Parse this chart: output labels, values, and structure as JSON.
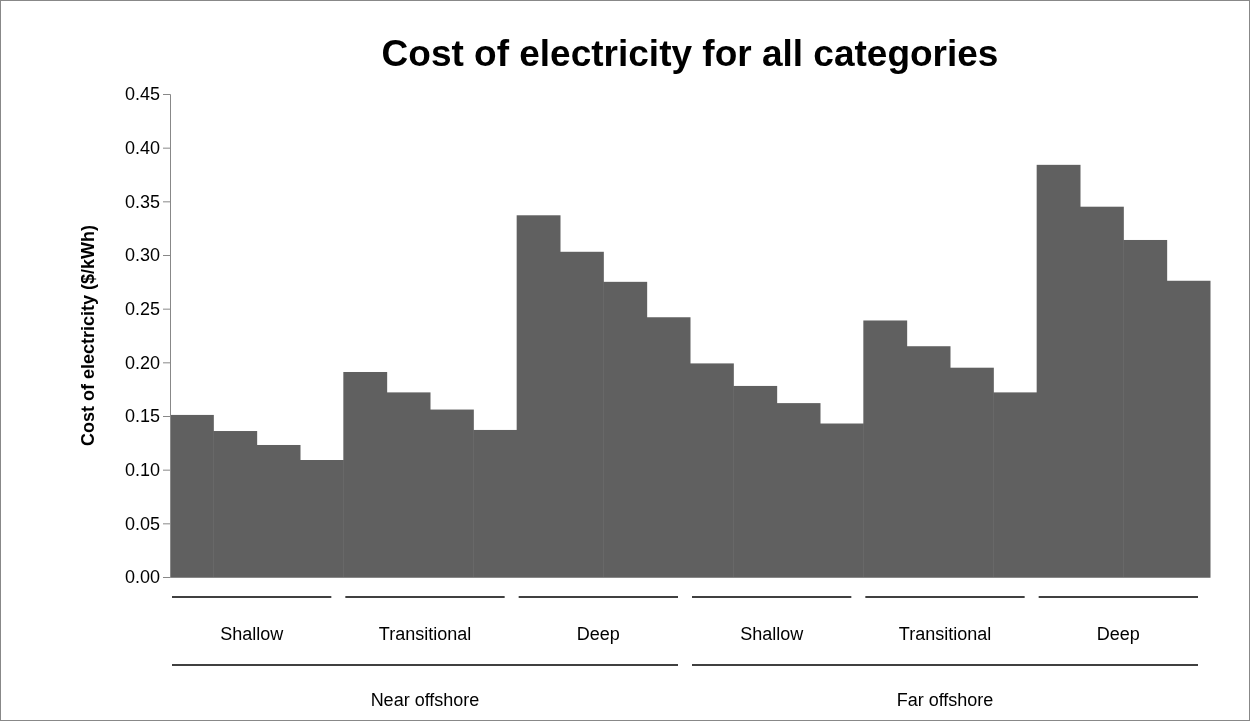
{
  "chart_data": {
    "type": "bar",
    "title": "Cost of electricity for all categories",
    "ylabel": "Cost of electricity ($/kWh)",
    "categories": [
      null,
      null,
      null,
      null,
      null,
      null,
      null,
      null,
      null,
      null,
      null,
      null,
      null,
      null,
      null,
      null,
      null,
      null,
      null,
      null,
      null,
      null,
      null,
      null
    ],
    "values": [
      0.151,
      0.136,
      0.123,
      0.109,
      0.191,
      0.172,
      0.156,
      0.137,
      0.337,
      0.303,
      0.275,
      0.242,
      0.199,
      0.178,
      0.162,
      0.143,
      0.239,
      0.215,
      0.195,
      0.172,
      0.384,
      0.345,
      0.314,
      0.276
    ],
    "color": "#606060",
    "ylim": [
      0,
      0.45
    ],
    "yticks": [
      {
        "value": 0,
        "label": "0.00"
      },
      {
        "value": 0.05,
        "label": "0.05"
      },
      {
        "value": 0.1,
        "label": "0.10"
      },
      {
        "value": 0.15,
        "label": "0.15"
      },
      {
        "value": 0.2,
        "label": "0.20"
      },
      {
        "value": 0.25,
        "label": "0.25"
      },
      {
        "value": 0.3,
        "label": "0.30"
      },
      {
        "value": 0.35,
        "label": "0.35"
      },
      {
        "value": 0.4,
        "label": "0.40"
      },
      {
        "value": 0.45,
        "label": "0.45"
      }
    ],
    "annotations": [
      "Shallow",
      "Transitional",
      "Deep",
      "Shallow",
      "Transitional",
      "Deep",
      "Near offshore",
      "Far offshore"
    ],
    "grid": false
  }
}
